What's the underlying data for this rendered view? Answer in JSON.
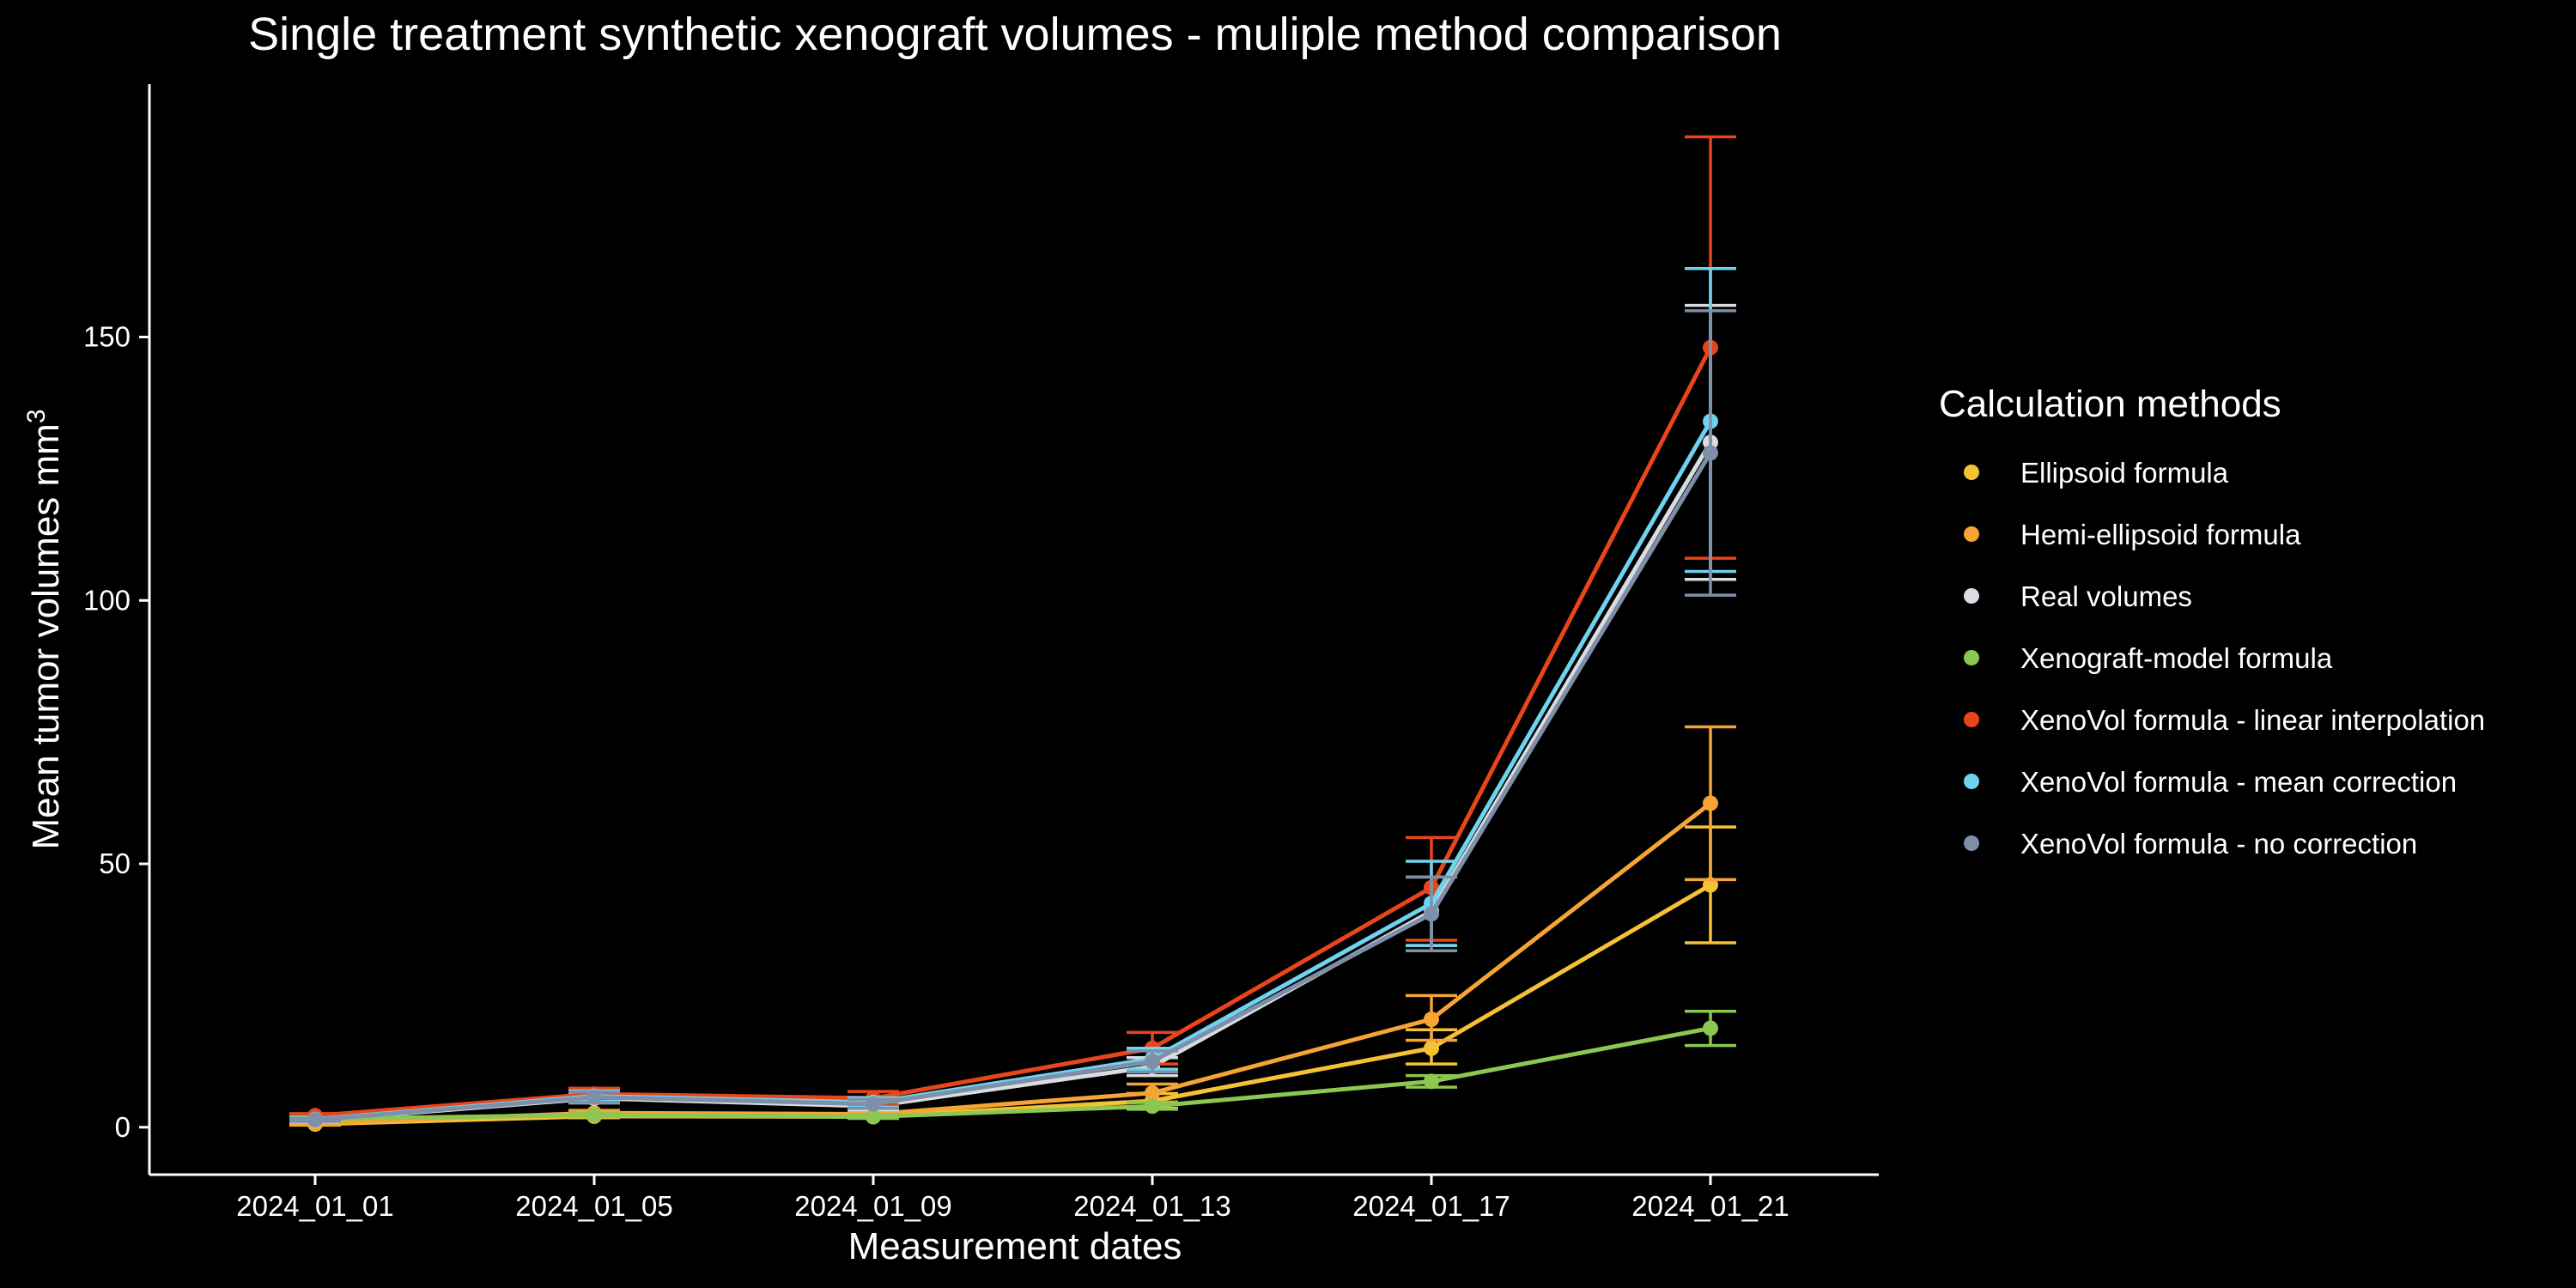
{
  "chart_data": {
    "type": "line",
    "title": "Single treatment synthetic xenograft volumes - muliple method comparison",
    "xlabel": "Measurement dates",
    "ylabel_main": "Mean tumor volumes mm",
    "ylabel_sup": "3",
    "categories": [
      "2024_01_01",
      "2024_01_05",
      "2024_01_09",
      "2024_01_13",
      "2024_01_17",
      "2024_01_21"
    ],
    "ylim": [
      -9,
      198
    ],
    "yticks": [
      0,
      50,
      100,
      150
    ],
    "grid": false,
    "error_bars": true,
    "legend": {
      "title": "Calculation methods",
      "position": "right"
    },
    "series": [
      {
        "name": "Ellipsoid formula",
        "color": "#F5C236",
        "values": [
          0.6,
          2.1,
          2.0,
          5.0,
          15.0,
          46.0
        ],
        "err_low": [
          0.4,
          1.8,
          1.7,
          3.6,
          12.0,
          35.0
        ],
        "err_high": [
          0.9,
          2.6,
          2.4,
          6.4,
          18.5,
          57.0
        ]
      },
      {
        "name": "Hemi-ellipsoid formula",
        "color": "#F6A434",
        "values": [
          0.8,
          2.7,
          2.5,
          6.5,
          20.5,
          61.5
        ],
        "err_low": [
          0.5,
          2.2,
          2.0,
          4.8,
          16.5,
          47.0
        ],
        "err_high": [
          1.1,
          3.2,
          3.0,
          8.2,
          25.0,
          76.0
        ]
      },
      {
        "name": "Real volumes",
        "color": "#D9DDE2",
        "values": [
          1.3,
          5.5,
          4.0,
          11.5,
          41.0,
          130.0
        ],
        "err_low": [
          1.0,
          4.6,
          3.3,
          9.8,
          34.5,
          104.0
        ],
        "err_high": [
          1.6,
          6.4,
          4.7,
          13.2,
          47.5,
          156.0
        ]
      },
      {
        "name": "Xenograft-model formula",
        "color": "#8CC752",
        "values": [
          1.6,
          2.3,
          2.0,
          4.0,
          8.7,
          18.8
        ],
        "err_low": [
          1.2,
          2.0,
          1.7,
          3.4,
          7.6,
          15.5
        ],
        "err_high": [
          2.0,
          2.6,
          2.3,
          4.7,
          9.8,
          22.0
        ]
      },
      {
        "name": "XenoVol formula - linear interpolation",
        "color": "#E8461A",
        "values": [
          2.2,
          6.3,
          5.5,
          15.0,
          45.5,
          148.0
        ],
        "err_low": [
          1.7,
          5.1,
          4.3,
          12.0,
          35.5,
          108.0
        ],
        "err_high": [
          2.6,
          7.4,
          6.8,
          18.0,
          55.0,
          188.0
        ]
      },
      {
        "name": "XenoVol formula - mean correction",
        "color": "#6FD3F0",
        "values": [
          1.5,
          5.9,
          4.7,
          13.0,
          42.5,
          134.0
        ],
        "err_low": [
          1.2,
          4.9,
          3.8,
          11.0,
          34.5,
          105.5
        ],
        "err_high": [
          1.8,
          6.9,
          5.6,
          15.0,
          50.5,
          163.0
        ]
      },
      {
        "name": "XenoVol formula - no correction",
        "color": "#7E8FA8",
        "values": [
          1.4,
          5.7,
          4.4,
          12.5,
          40.5,
          128.0
        ],
        "err_low": [
          1.1,
          4.7,
          3.6,
          10.5,
          33.5,
          101.0
        ],
        "err_high": [
          1.7,
          6.7,
          5.3,
          14.5,
          47.5,
          155.0
        ]
      }
    ]
  }
}
